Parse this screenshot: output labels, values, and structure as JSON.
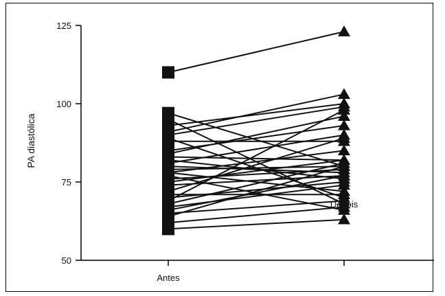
{
  "chart_data": {
    "type": "line",
    "xlabel": "",
    "ylabel": "PA diastólica",
    "categories": [
      "Antes",
      "Depois"
    ],
    "ylim": [
      50,
      125
    ],
    "yticks": [
      50,
      75,
      100,
      125
    ],
    "markers": {
      "Antes": "square",
      "Depois": "triangle"
    },
    "grid": false,
    "legend": "none",
    "pairs": [
      [
        110,
        123
      ],
      [
        97,
        80
      ],
      [
        95,
        68
      ],
      [
        93,
        100
      ],
      [
        91,
        103
      ],
      [
        90,
        99
      ],
      [
        89,
        70
      ],
      [
        88,
        88
      ],
      [
        85,
        93
      ],
      [
        84,
        96
      ],
      [
        83,
        82
      ],
      [
        82,
        76
      ],
      [
        81,
        90
      ],
      [
        80,
        78
      ],
      [
        79,
        80
      ],
      [
        78,
        72
      ],
      [
        78,
        85
      ],
      [
        77,
        66
      ],
      [
        76,
        79
      ],
      [
        75,
        82
      ],
      [
        74,
        77
      ],
      [
        72,
        89
      ],
      [
        71,
        71
      ],
      [
        70,
        75
      ],
      [
        69,
        98
      ],
      [
        68,
        81
      ],
      [
        67,
        74
      ],
      [
        66,
        77
      ],
      [
        65,
        69
      ],
      [
        64,
        80
      ],
      [
        62,
        67
      ],
      [
        60,
        63
      ]
    ]
  }
}
